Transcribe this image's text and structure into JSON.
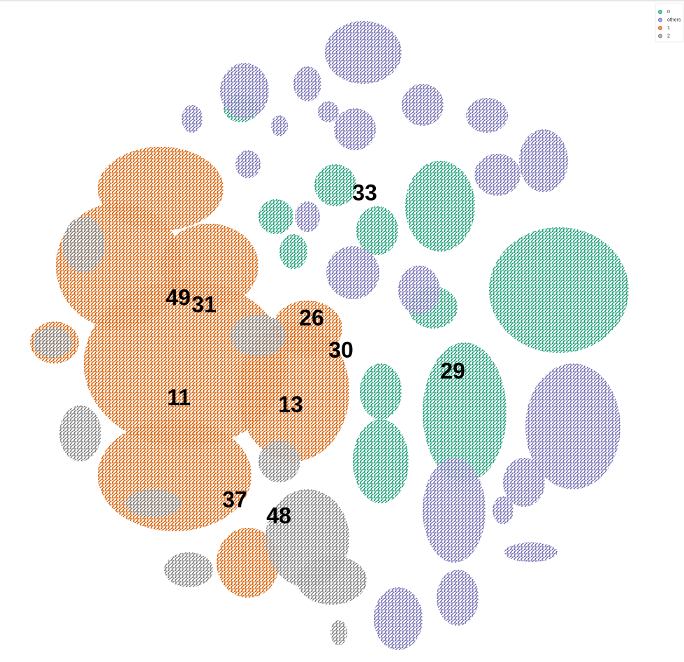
{
  "chart_data": {
    "type": "scatter",
    "series": [
      {
        "name": "0",
        "color": "#1b9e77"
      },
      {
        "name": "others",
        "color": "#7570b3"
      },
      {
        "name": "1",
        "color": "#d95f02"
      },
      {
        "name": "2",
        "color": "#7f7f7f"
      }
    ],
    "legend": "upper right",
    "annotations": [
      "33",
      "49",
      "31",
      "26",
      "30",
      "29",
      "11",
      "13",
      "37",
      "48"
    ]
  }
}
